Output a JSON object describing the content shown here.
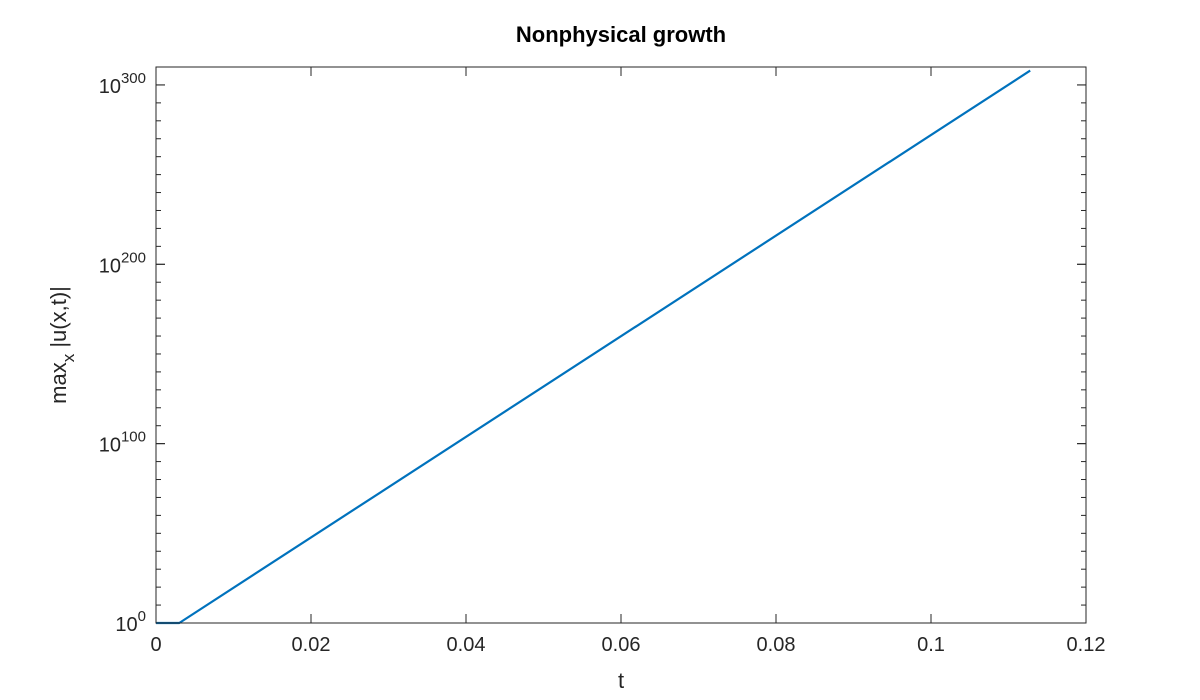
{
  "chart_data": {
    "type": "line",
    "title": "Nonphysical growth",
    "xlabel": "t",
    "ylabel": {
      "main": "max",
      "subscript": "x",
      "rest": " |u(x,t)|"
    },
    "xlim": [
      0,
      0.12
    ],
    "ylim_exponent": [
      0,
      310
    ],
    "yscale": "log",
    "grid": false,
    "x_ticks": [
      {
        "value": 0,
        "label": "0"
      },
      {
        "value": 0.02,
        "label": "0.02"
      },
      {
        "value": 0.04,
        "label": "0.04"
      },
      {
        "value": 0.06,
        "label": "0.06"
      },
      {
        "value": 0.08,
        "label": "0.08"
      },
      {
        "value": 0.1,
        "label": "0.1"
      },
      {
        "value": 0.12,
        "label": "0.12"
      }
    ],
    "y_ticks": [
      {
        "exponent": 0,
        "base": "10",
        "power": "0"
      },
      {
        "exponent": 100,
        "base": "10",
        "power": "100"
      },
      {
        "exponent": 200,
        "base": "10",
        "power": "200"
      },
      {
        "exponent": 300,
        "base": "10",
        "power": "300"
      }
    ],
    "series": [
      {
        "color": "#0072BD",
        "x": [
          0,
          0.003,
          0.1128
        ],
        "y_log10": [
          0,
          0,
          308
        ]
      }
    ]
  }
}
